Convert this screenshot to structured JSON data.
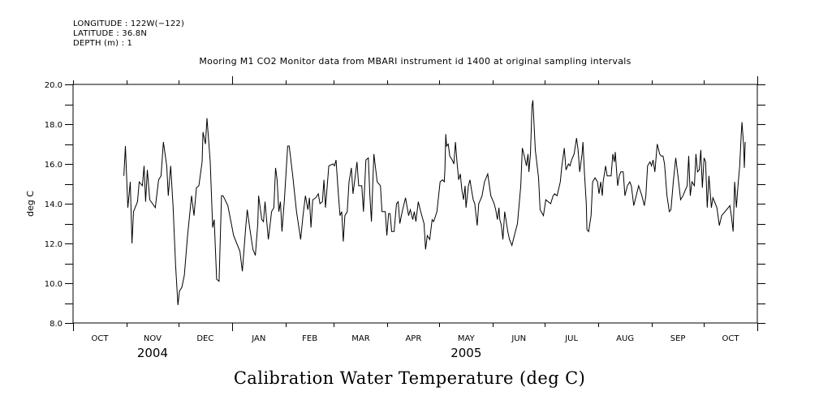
{
  "header": {
    "longitude": "LONGITUDE : 122W(−122)",
    "latitude": "LATITUDE : 36.8N",
    "depth": "DEPTH (m) : 1",
    "subtitle": "Mooring M1 CO2 Monitor data from MBARI instrument id 1400 at original sampling intervals"
  },
  "chart_data": {
    "type": "line",
    "title": "Calibration Water Temperature (deg C)",
    "subtitle": "Mooring M1 CO2 Monitor data from MBARI instrument id 1400 at original sampling intervals",
    "xlabel": "",
    "ylabel": "deg C",
    "x_units": "days since 2004-10-01",
    "xlim": [
      0,
      396
    ],
    "ylim": [
      8.0,
      20.0
    ],
    "y_ticks": [
      8.0,
      10.0,
      12.0,
      14.0,
      16.0,
      18.0,
      20.0
    ],
    "y_tick_labels": [
      "8.0",
      "10.0",
      "12.0",
      "14.0",
      "16.0",
      "18.0",
      "20.0"
    ],
    "y_minor_step": 1.0,
    "month_boundaries_days": [
      0,
      31,
      61,
      92,
      123,
      151,
      182,
      212,
      243,
      273,
      304,
      335,
      365,
      396
    ],
    "month_labels": [
      "OCT",
      "NOV",
      "DEC",
      "JAN",
      "FEB",
      "MAR",
      "APR",
      "MAY",
      "JUN",
      "JUL",
      "AUG",
      "SEP",
      "OCT"
    ],
    "year_labels": [
      {
        "label": "2004",
        "month_index": 1
      },
      {
        "label": "2005",
        "month_index": 7
      }
    ],
    "year_boundary_day": 92,
    "grid": false,
    "legend": "none",
    "series": [
      {
        "name": "Calibration Water Temperature",
        "color": "#000000",
        "points": [
          [
            29.4,
            15.4
          ],
          [
            30.3,
            16.9
          ],
          [
            31.7,
            13.8
          ],
          [
            33.1,
            15.1
          ],
          [
            34.1,
            12.0
          ],
          [
            35.0,
            13.6
          ],
          [
            37.3,
            14.1
          ],
          [
            38.3,
            15.1
          ],
          [
            40.1,
            14.9
          ],
          [
            41.1,
            15.9
          ],
          [
            42.0,
            14.1
          ],
          [
            43.0,
            15.7
          ],
          [
            44.4,
            14.2
          ],
          [
            47.6,
            13.8
          ],
          [
            49.5,
            15.2
          ],
          [
            50.9,
            15.4
          ],
          [
            52.3,
            17.1
          ],
          [
            54.2,
            15.9
          ],
          [
            55.1,
            14.4
          ],
          [
            56.5,
            15.9
          ],
          [
            57.9,
            13.8
          ],
          [
            59.3,
            11.0
          ],
          [
            60.2,
            9.6
          ],
          [
            60.7,
            8.9
          ],
          [
            61.6,
            9.6
          ],
          [
            63.0,
            9.8
          ],
          [
            64.4,
            10.4
          ],
          [
            66.3,
            12.4
          ],
          [
            68.6,
            14.4
          ],
          [
            70.0,
            13.4
          ],
          [
            71.4,
            14.8
          ],
          [
            72.8,
            14.9
          ],
          [
            74.7,
            16.1
          ],
          [
            75.2,
            17.6
          ],
          [
            76.6,
            17.0
          ],
          [
            77.5,
            18.3
          ],
          [
            79.4,
            16.1
          ],
          [
            80.8,
            12.8
          ],
          [
            81.7,
            13.2
          ],
          [
            83.1,
            10.2
          ],
          [
            84.5,
            10.1
          ],
          [
            85.9,
            14.4
          ],
          [
            86.8,
            14.4
          ],
          [
            89.6,
            13.9
          ],
          [
            92.9,
            12.4
          ],
          [
            96.6,
            11.6
          ],
          [
            98.0,
            10.6
          ],
          [
            99.9,
            12.8
          ],
          [
            100.8,
            13.7
          ],
          [
            102.2,
            12.8
          ],
          [
            104.1,
            11.7
          ],
          [
            105.5,
            11.4
          ],
          [
            106.9,
            13.0
          ],
          [
            107.4,
            14.4
          ],
          [
            109.2,
            13.2
          ],
          [
            110.2,
            13.1
          ],
          [
            111.1,
            14.1
          ],
          [
            113.0,
            12.2
          ],
          [
            114.9,
            13.6
          ],
          [
            116.2,
            13.8
          ],
          [
            117.2,
            15.8
          ],
          [
            118.1,
            15.2
          ],
          [
            119.1,
            13.6
          ],
          [
            120.0,
            14.1
          ],
          [
            120.9,
            12.6
          ],
          [
            122.3,
            14.2
          ],
          [
            124.2,
            16.9
          ],
          [
            125.1,
            16.9
          ],
          [
            127.0,
            15.5
          ],
          [
            129.3,
            13.6
          ],
          [
            131.7,
            12.2
          ],
          [
            133.1,
            13.4
          ],
          [
            134.5,
            14.4
          ],
          [
            135.9,
            13.7
          ],
          [
            136.8,
            14.3
          ],
          [
            137.7,
            12.8
          ],
          [
            138.7,
            14.2
          ],
          [
            140.5,
            14.3
          ],
          [
            141.9,
            14.5
          ],
          [
            142.9,
            14.0
          ],
          [
            144.3,
            14.1
          ],
          [
            145.2,
            15.2
          ],
          [
            146.1,
            13.8
          ],
          [
            148.0,
            15.9
          ],
          [
            150.4,
            16.0
          ],
          [
            151.3,
            15.9
          ],
          [
            152.2,
            16.2
          ],
          [
            153.6,
            14.4
          ],
          [
            154.5,
            13.4
          ],
          [
            155.5,
            13.6
          ],
          [
            156.4,
            12.1
          ],
          [
            157.3,
            13.4
          ],
          [
            158.7,
            13.6
          ],
          [
            159.7,
            15.1
          ],
          [
            161.1,
            15.8
          ],
          [
            162.0,
            14.5
          ],
          [
            162.9,
            15.1
          ],
          [
            164.3,
            16.1
          ],
          [
            165.3,
            14.9
          ],
          [
            167.1,
            14.9
          ],
          [
            168.1,
            13.6
          ],
          [
            169.5,
            16.2
          ],
          [
            170.9,
            16.3
          ],
          [
            171.8,
            14.4
          ],
          [
            172.7,
            13.1
          ],
          [
            174.1,
            16.5
          ],
          [
            176.0,
            15.1
          ],
          [
            177.9,
            14.9
          ],
          [
            178.8,
            13.6
          ],
          [
            180.7,
            13.6
          ],
          [
            181.6,
            12.4
          ],
          [
            182.6,
            13.5
          ],
          [
            183.5,
            13.5
          ],
          [
            184.4,
            12.6
          ],
          [
            185.8,
            12.6
          ],
          [
            187.2,
            14.0
          ],
          [
            188.2,
            14.1
          ],
          [
            189.1,
            13.0
          ],
          [
            190.5,
            13.6
          ],
          [
            192.4,
            14.3
          ],
          [
            194.2,
            13.4
          ],
          [
            195.2,
            13.7
          ],
          [
            196.6,
            13.2
          ],
          [
            197.5,
            13.6
          ],
          [
            198.4,
            13.1
          ],
          [
            199.8,
            14.1
          ],
          [
            201.2,
            13.6
          ],
          [
            203.1,
            13.0
          ],
          [
            204.0,
            11.7
          ],
          [
            205.0,
            12.4
          ],
          [
            206.4,
            12.2
          ],
          [
            207.8,
            13.2
          ],
          [
            208.7,
            13.1
          ],
          [
            210.6,
            13.6
          ],
          [
            212.4,
            15.1
          ],
          [
            213.8,
            15.2
          ],
          [
            214.8,
            15.1
          ],
          [
            215.2,
            15.7
          ],
          [
            215.7,
            17.5
          ],
          [
            216.2,
            16.9
          ],
          [
            217.1,
            17.0
          ],
          [
            218.0,
            16.4
          ],
          [
            219.4,
            16.2
          ],
          [
            220.4,
            16.0
          ],
          [
            221.3,
            17.1
          ],
          [
            222.2,
            16.1
          ],
          [
            223.2,
            15.2
          ],
          [
            224.1,
            15.5
          ],
          [
            225.0,
            14.7
          ],
          [
            226.0,
            14.2
          ],
          [
            226.9,
            14.9
          ],
          [
            227.4,
            13.8
          ],
          [
            228.8,
            14.9
          ],
          [
            229.7,
            15.2
          ],
          [
            230.6,
            14.7
          ],
          [
            231.6,
            14.2
          ],
          [
            232.5,
            14.0
          ],
          [
            233.9,
            12.9
          ],
          [
            234.8,
            14.0
          ],
          [
            235.8,
            14.2
          ],
          [
            236.7,
            14.4
          ],
          [
            238.1,
            15.1
          ],
          [
            240.0,
            15.5
          ],
          [
            241.8,
            14.4
          ],
          [
            243.7,
            14.0
          ],
          [
            244.6,
            13.7
          ],
          [
            245.6,
            13.2
          ],
          [
            246.5,
            13.8
          ],
          [
            247.0,
            13.2
          ],
          [
            247.9,
            12.9
          ],
          [
            248.8,
            12.2
          ],
          [
            249.8,
            13.6
          ],
          [
            250.7,
            13.1
          ],
          [
            251.6,
            12.6
          ],
          [
            252.6,
            12.2
          ],
          [
            254.0,
            11.9
          ],
          [
            255.4,
            12.4
          ],
          [
            257.2,
            13.0
          ],
          [
            259.1,
            14.9
          ],
          [
            260.0,
            16.8
          ],
          [
            261.4,
            16.3
          ],
          [
            262.4,
            15.9
          ],
          [
            263.3,
            16.5
          ],
          [
            263.8,
            15.6
          ],
          [
            264.7,
            16.5
          ],
          [
            265.6,
            18.9
          ],
          [
            266.1,
            19.2
          ],
          [
            267.5,
            16.7
          ],
          [
            269.4,
            15.3
          ],
          [
            270.3,
            13.7
          ],
          [
            272.2,
            13.4
          ],
          [
            273.6,
            14.2
          ],
          [
            275.0,
            14.1
          ],
          [
            276.4,
            14.0
          ],
          [
            277.8,
            14.4
          ],
          [
            278.7,
            14.5
          ],
          [
            280.1,
            14.4
          ],
          [
            282.0,
            15.1
          ],
          [
            282.9,
            15.9
          ],
          [
            284.3,
            16.8
          ],
          [
            285.3,
            15.7
          ],
          [
            286.7,
            16.0
          ],
          [
            287.6,
            15.9
          ],
          [
            288.5,
            16.2
          ],
          [
            290.0,
            16.5
          ],
          [
            291.4,
            17.3
          ],
          [
            292.3,
            16.7
          ],
          [
            293.2,
            15.6
          ],
          [
            294.6,
            16.5
          ],
          [
            295.1,
            17.1
          ],
          [
            296.0,
            15.5
          ],
          [
            297.0,
            14.0
          ],
          [
            297.4,
            12.7
          ],
          [
            298.4,
            12.6
          ],
          [
            299.8,
            13.4
          ],
          [
            300.7,
            15.1
          ],
          [
            302.1,
            15.3
          ],
          [
            303.5,
            15.1
          ],
          [
            304.4,
            14.5
          ],
          [
            305.4,
            15.1
          ],
          [
            306.3,
            14.4
          ],
          [
            306.8,
            15.1
          ],
          [
            308.2,
            15.9
          ],
          [
            309.1,
            15.4
          ],
          [
            311.4,
            15.4
          ],
          [
            312.4,
            16.5
          ],
          [
            313.3,
            16.1
          ],
          [
            313.8,
            16.6
          ],
          [
            314.7,
            15.5
          ],
          [
            315.2,
            14.9
          ],
          [
            316.1,
            15.4
          ],
          [
            317.0,
            15.6
          ],
          [
            318.4,
            15.6
          ],
          [
            319.4,
            14.4
          ],
          [
            320.8,
            14.9
          ],
          [
            322.2,
            15.1
          ],
          [
            323.1,
            14.9
          ],
          [
            324.5,
            13.9
          ],
          [
            325.9,
            14.4
          ],
          [
            327.3,
            14.9
          ],
          [
            329.2,
            14.4
          ],
          [
            330.6,
            13.9
          ],
          [
            331.5,
            14.4
          ],
          [
            332.5,
            15.9
          ],
          [
            333.9,
            16.1
          ],
          [
            334.8,
            15.9
          ],
          [
            335.7,
            16.2
          ],
          [
            336.7,
            15.6
          ],
          [
            338.1,
            17.0
          ],
          [
            339.5,
            16.5
          ],
          [
            340.4,
            16.4
          ],
          [
            341.4,
            16.4
          ],
          [
            342.3,
            16.0
          ],
          [
            343.7,
            14.4
          ],
          [
            345.1,
            13.6
          ],
          [
            346.0,
            13.7
          ],
          [
            347.4,
            15.1
          ],
          [
            348.8,
            16.3
          ],
          [
            350.2,
            15.3
          ],
          [
            351.6,
            14.2
          ],
          [
            353.0,
            14.4
          ],
          [
            354.4,
            14.7
          ],
          [
            355.4,
            14.9
          ],
          [
            356.3,
            16.4
          ],
          [
            357.2,
            14.4
          ],
          [
            358.2,
            15.1
          ],
          [
            359.6,
            14.9
          ],
          [
            360.5,
            16.5
          ],
          [
            361.4,
            15.6
          ],
          [
            362.4,
            15.7
          ],
          [
            363.3,
            16.7
          ],
          [
            364.2,
            14.8
          ],
          [
            365.2,
            16.3
          ],
          [
            366.1,
            16.1
          ],
          [
            367.0,
            13.8
          ],
          [
            368.0,
            15.4
          ],
          [
            369.4,
            13.8
          ],
          [
            370.3,
            14.3
          ],
          [
            371.7,
            14.0
          ],
          [
            372.6,
            13.8
          ],
          [
            374.0,
            12.9
          ],
          [
            375.4,
            13.4
          ],
          [
            377.3,
            13.6
          ],
          [
            379.2,
            13.8
          ],
          [
            380.1,
            13.9
          ],
          [
            381.1,
            13.3
          ],
          [
            382.0,
            12.6
          ],
          [
            382.9,
            15.1
          ],
          [
            383.9,
            13.8
          ],
          [
            384.8,
            14.9
          ],
          [
            385.8,
            15.9
          ],
          [
            386.7,
            17.5
          ],
          [
            387.1,
            18.1
          ],
          [
            388.1,
            16.9
          ],
          [
            388.5,
            15.8
          ],
          [
            389.0,
            17.1
          ]
        ]
      }
    ]
  }
}
